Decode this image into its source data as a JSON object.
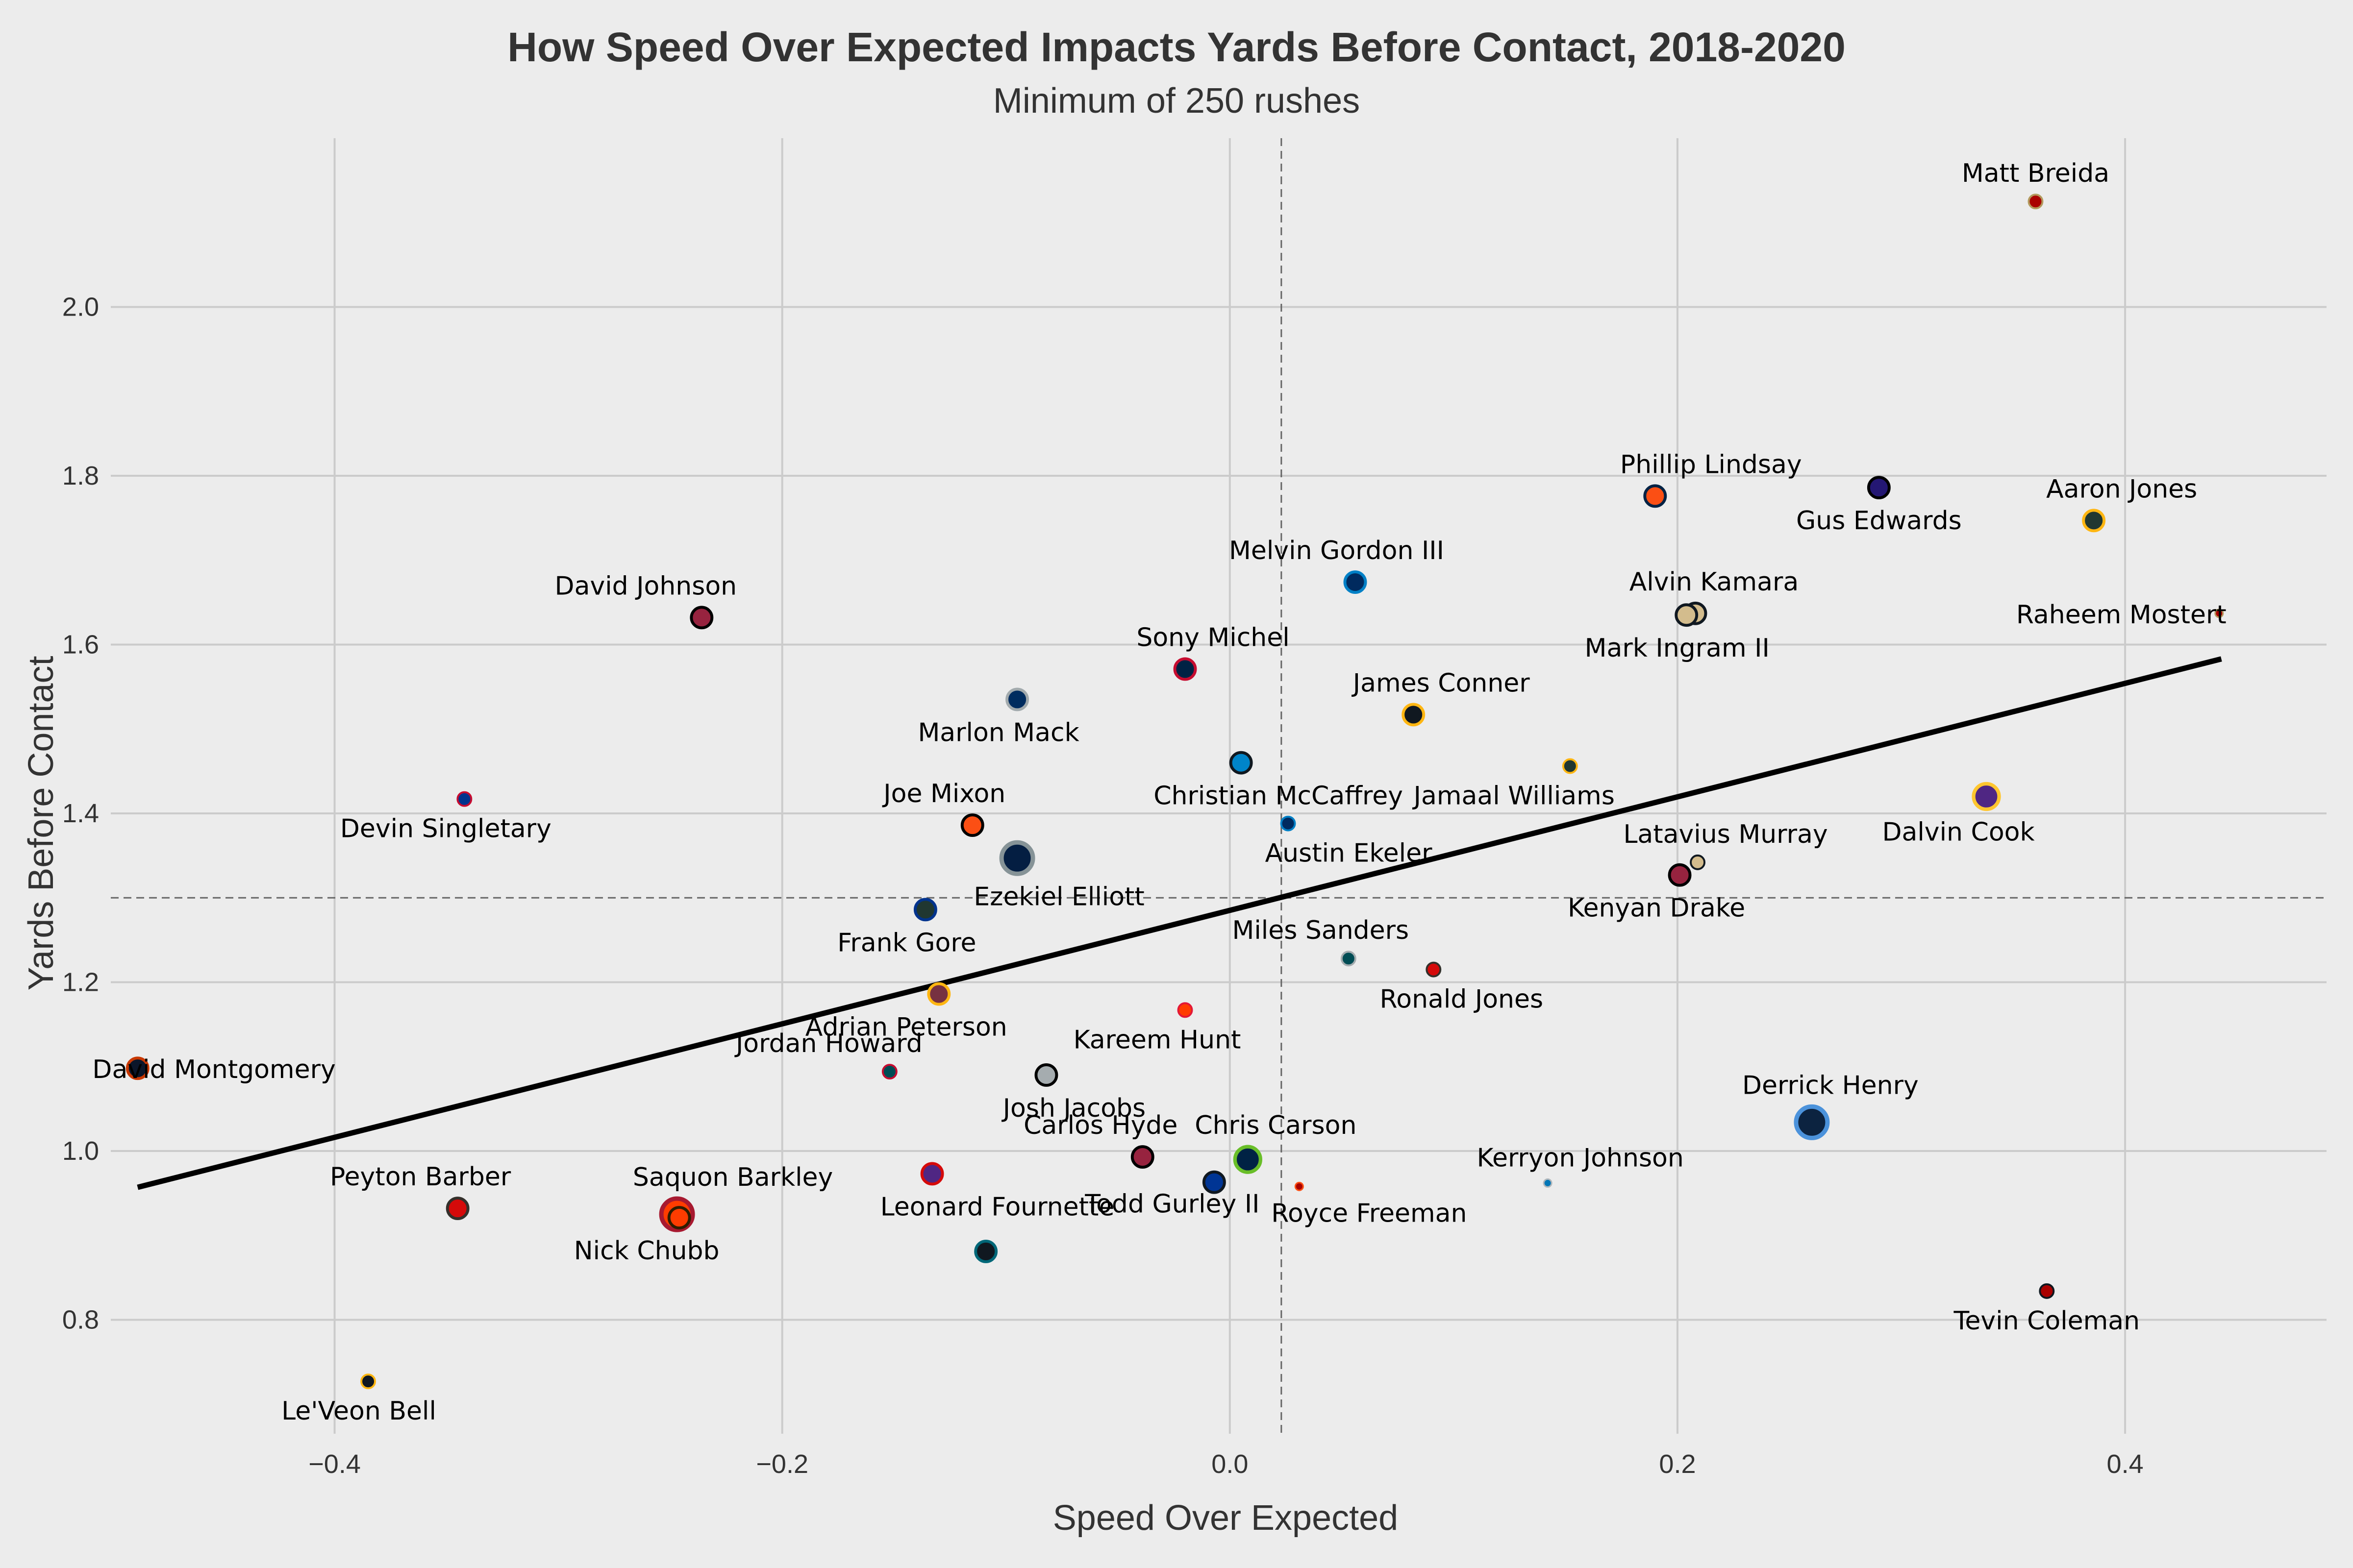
{
  "chart_data": {
    "type": "scatter",
    "title": "How Speed Over Expected Impacts Yards Before Contact, 2018-2020",
    "subtitle": "Minimum of 250 rushes",
    "xlabel": "Speed Over Expected",
    "ylabel": "Yards Before Contact",
    "xlim": [
      -0.5,
      0.49
    ],
    "ylim": [
      0.665,
      2.2
    ],
    "xticks": [
      -0.4,
      -0.2,
      0.0,
      0.2,
      0.4
    ],
    "yticks": [
      0.8,
      1.0,
      1.2,
      1.4,
      1.6,
      1.8,
      2.0
    ],
    "xtick_labels": [
      "−0.4",
      "−0.2",
      "0.0",
      "0.2",
      "0.4"
    ],
    "ytick_labels": [
      "0.8",
      "1.0",
      "1.2",
      "1.4",
      "1.6",
      "1.8",
      "2.0"
    ],
    "grid": true,
    "mean_lines": {
      "x": 0.023,
      "y": 1.3
    },
    "trend_line": {
      "x": [
        -0.488,
        0.443
      ],
      "y": [
        0.957,
        1.583
      ]
    },
    "points": [
      {
        "name": "Matt Breida",
        "x": 0.36,
        "y": 2.125,
        "size": 1,
        "color": "#aa0000",
        "edge": "#b3995d",
        "label_dx": 0,
        "label_dy": -1
      },
      {
        "name": "Phillip Lindsay",
        "x": 0.19,
        "y": 1.776,
        "size": 2,
        "color": "#fb4f14",
        "edge": "#002244",
        "label_dx": 0.6,
        "label_dy": -1
      },
      {
        "name": "Gus Edwards",
        "x": 0.29,
        "y": 1.786,
        "size": 2,
        "color": "#241773",
        "edge": "#000000",
        "label_dx": 0,
        "label_dy": 1
      },
      {
        "name": "Aaron Jones",
        "x": 0.386,
        "y": 1.747,
        "size": 2,
        "color": "#203731",
        "edge": "#ffb612",
        "label_dx": 0.3,
        "label_dy": -1
      },
      {
        "name": "Raheem Mostert",
        "x": 0.442,
        "y": 1.637,
        "size": 0,
        "color": "#aa0000",
        "edge": "#b3995d",
        "label_dx": -1.05,
        "label_dy": 0
      },
      {
        "name": "Alvin Kamara",
        "x": 0.208,
        "y": 1.637,
        "size": 2,
        "color": "#d3bc8d",
        "edge": "#101820",
        "label_dx": 0.2,
        "label_dy": -1
      },
      {
        "name": "Mark Ingram II",
        "x": 0.204,
        "y": 1.635,
        "size": 2,
        "color": "#d3bc8d",
        "edge": "#101820",
        "label_dx": -0.1,
        "label_dy": 1
      },
      {
        "name": "Melvin Gordon III",
        "x": 0.056,
        "y": 1.674,
        "size": 2,
        "color": "#002a5e",
        "edge": "#0080c6",
        "label_dx": -0.2,
        "label_dy": -1
      },
      {
        "name": "David Johnson",
        "x": -0.236,
        "y": 1.632,
        "size": 2,
        "color": "#97233f",
        "edge": "#000000",
        "label_dx": -0.6,
        "label_dy": -1
      },
      {
        "name": "Sony Michel",
        "x": -0.02,
        "y": 1.571,
        "size": 2,
        "color": "#002244",
        "edge": "#c60c30",
        "label_dx": 0.3,
        "label_dy": -1
      },
      {
        "name": "Marlon Mack",
        "x": -0.095,
        "y": 1.535,
        "size": 2,
        "color": "#002c5f",
        "edge": "#a2aaad",
        "label_dx": -0.2,
        "label_dy": 1
      },
      {
        "name": "James Conner",
        "x": 0.082,
        "y": 1.517,
        "size": 2,
        "color": "#101820",
        "edge": "#ffb612",
        "label_dx": 0.3,
        "label_dy": -1
      },
      {
        "name": "Jamaal Williams",
        "x": 0.152,
        "y": 1.456,
        "size": 1,
        "color": "#203731",
        "edge": "#ffb612",
        "label_dx": -0.6,
        "label_dy": 1
      },
      {
        "name": "Christian McCaffrey",
        "x": 0.005,
        "y": 1.46,
        "size": 2,
        "color": "#0085ca",
        "edge": "#101820",
        "label_dx": 0.4,
        "label_dy": 1
      },
      {
        "name": "Devin Singletary",
        "x": -0.342,
        "y": 1.417,
        "size": 1,
        "color": "#00338d",
        "edge": "#c60c30",
        "label_dx": -0.2,
        "label_dy": 1
      },
      {
        "name": "Joe Mixon",
        "x": -0.115,
        "y": 1.386,
        "size": 2,
        "color": "#fb4f14",
        "edge": "#000000",
        "label_dx": -0.3,
        "label_dy": -1
      },
      {
        "name": "Austin Ekeler",
        "x": 0.026,
        "y": 1.388,
        "size": 1,
        "color": "#002a5e",
        "edge": "#0080c6",
        "label_dx": 0.65,
        "label_dy": 1
      },
      {
        "name": "Dalvin Cook",
        "x": 0.338,
        "y": 1.42,
        "size": 3,
        "color": "#4f2683",
        "edge": "#ffc62f",
        "label_dx": -0.3,
        "label_dy": 1
      },
      {
        "name": "Ezekiel Elliott",
        "x": -0.095,
        "y": 1.347,
        "size": 4,
        "color": "#041e42",
        "edge": "#869397",
        "label_dx": 0.45,
        "label_dy": 1
      },
      {
        "name": "Latavius Murray",
        "x": 0.209,
        "y": 1.342,
        "size": 1,
        "color": "#d3bc8d",
        "edge": "#101820",
        "label_dx": 0.3,
        "label_dy": -1
      },
      {
        "name": "Kenyan Drake",
        "x": 0.201,
        "y": 1.327,
        "size": 2,
        "color": "#97233f",
        "edge": "#000000",
        "label_dx": -0.25,
        "label_dy": 1
      },
      {
        "name": "Frank Gore",
        "x": -0.136,
        "y": 1.286,
        "size": 2,
        "color": "#203731",
        "edge": "#00338d",
        "label_dx": -0.2,
        "label_dy": 1
      },
      {
        "name": "Miles Sanders",
        "x": 0.053,
        "y": 1.228,
        "size": 1,
        "color": "#004c54",
        "edge": "#a5acaf",
        "label_dx": -0.3,
        "label_dy": -1
      },
      {
        "name": "Ronald Jones",
        "x": 0.091,
        "y": 1.215,
        "size": 1,
        "color": "#d50a0a",
        "edge": "#34302b",
        "label_dx": 0.3,
        "label_dy": 1
      },
      {
        "name": "Adrian Peterson",
        "x": -0.13,
        "y": 1.186,
        "size": 2,
        "color": "#773141",
        "edge": "#ffb612",
        "label_dx": -0.35,
        "label_dy": 1
      },
      {
        "name": "Kareem Hunt",
        "x": -0.02,
        "y": 1.167,
        "size": 1,
        "color": "#ff3c00",
        "edge": "#e31837",
        "label_dx": -0.3,
        "label_dy": 1
      },
      {
        "name": "David Montgomery",
        "x": -0.488,
        "y": 1.098,
        "size": 2,
        "color": "#0b162a",
        "edge": "#c83803",
        "label_dx": 0.82,
        "label_dy": 0
      },
      {
        "name": "Jordan Howard",
        "x": -0.152,
        "y": 1.094,
        "size": 1,
        "color": "#004c54",
        "edge": "#c60c30",
        "label_dx": -0.65,
        "label_dy": -1
      },
      {
        "name": "Josh Jacobs",
        "x": -0.082,
        "y": 1.09,
        "size": 2,
        "color": "#a5acaf",
        "edge": "#000000",
        "label_dx": 0.3,
        "label_dy": 1
      },
      {
        "name": "Derrick Henry",
        "x": 0.26,
        "y": 1.034,
        "size": 4,
        "color": "#0c2340",
        "edge": "#4b92db",
        "label_dx": 0.2,
        "label_dy": -1
      },
      {
        "name": "Carlos Hyde",
        "x": -0.039,
        "y": 0.993,
        "size": 2,
        "color": "#97233f",
        "edge": "#000000",
        "label_dx": -0.45,
        "label_dy": -1
      },
      {
        "name": "Chris Carson",
        "x": 0.008,
        "y": 0.99,
        "size": 3,
        "color": "#002244",
        "edge": "#69be28",
        "label_dx": 0.3,
        "label_dy": -1
      },
      {
        "name": "Kerryon Johnson",
        "x": 0.142,
        "y": 0.962,
        "size": 0,
        "color": "#0076b6",
        "edge": "#b0b7bc",
        "label_dx": 0.35,
        "label_dy": -1
      },
      {
        "name": "Todd Gurley II",
        "x": -0.007,
        "y": 0.963,
        "size": 2,
        "color": "#003594",
        "edge": "#101820",
        "label_dx": -0.45,
        "label_dy": 0.5
      },
      {
        "name": "Royce Freeman",
        "x": 0.031,
        "y": 0.958,
        "size": 0,
        "color": "#aa0000",
        "edge": "#fb4f14",
        "label_dx": 0.75,
        "label_dy": 1
      },
      {
        "name": "Peyton Barber",
        "x": -0.345,
        "y": 0.932,
        "size": 2,
        "color": "#d50a0a",
        "edge": "#34302b",
        "label_dx": -0.4,
        "label_dy": -1
      },
      {
        "name": "Saquon Barkley",
        "x": -0.247,
        "y": 0.925,
        "size": 4,
        "color": "#ff3c00",
        "edge": "#a71930",
        "label_dx": 0.6,
        "label_dy": -1
      },
      {
        "name": "Leonard Fournette",
        "x": -0.133,
        "y": 0.973,
        "size": 2,
        "color": "#4f2683",
        "edge": "#d50a0a",
        "label_dx": 0.7,
        "label_dy": 1
      },
      {
        "name": "Nick Chubb",
        "x": -0.246,
        "y": 0.921,
        "size": 2,
        "color": "#ff3c00",
        "edge": "#311d00",
        "label_dx": -0.35,
        "label_dy": 1
      },
      {
        "name": "Tevin Coleman",
        "x": 0.365,
        "y": 0.834,
        "size": 1,
        "color": "#aa0000",
        "edge": "#101820",
        "label_dx": 0,
        "label_dy": 1
      },
      {
        "name": "Le'Veon Bell",
        "x": -0.385,
        "y": 0.727,
        "size": 1,
        "color": "#101820",
        "edge": "#ffb612",
        "label_dx": -0.1,
        "label_dy": 1
      },
      {
        "name": "Leonard Fournette dot",
        "x": -0.109,
        "y": 0.881,
        "size": 2,
        "color": "#101820",
        "edge": "#006778",
        "label_dx": 0,
        "label_dy": 0
      }
    ]
  }
}
